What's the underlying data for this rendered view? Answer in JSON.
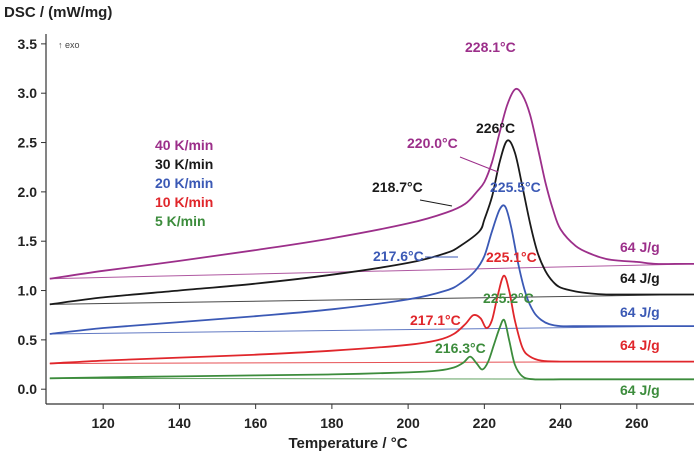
{
  "chart_data": {
    "type": "line",
    "title": "",
    "xlabel": "Temperature / °C",
    "ylabel": "DSC / (mW/mg)",
    "xlim": [
      105,
      275
    ],
    "ylim": [
      -0.15,
      3.6
    ],
    "xticks": [
      120,
      140,
      160,
      180,
      200,
      220,
      240,
      260
    ],
    "yticks": [
      "0.0",
      "0.5",
      "1.0",
      "1.5",
      "2.0",
      "2.5",
      "3.0",
      "3.5"
    ],
    "exo_label": "↑ exo",
    "legend_placement": "upper-left",
    "series": [
      {
        "name": "40 K/min",
        "color": "#9c2f8a",
        "x": [
          106,
          120,
          140,
          160,
          180,
          200,
          210,
          215,
          218,
          220,
          222,
          224,
          226,
          228.1,
          230,
          232,
          234,
          236,
          238,
          240,
          244,
          248,
          252,
          256,
          260,
          265,
          270,
          275
        ],
        "y": [
          1.12,
          1.2,
          1.3,
          1.41,
          1.53,
          1.68,
          1.79,
          1.88,
          2.0,
          2.1,
          2.3,
          2.6,
          2.88,
          3.04,
          2.98,
          2.78,
          2.45,
          2.1,
          1.82,
          1.62,
          1.45,
          1.37,
          1.32,
          1.3,
          1.29,
          1.27,
          1.27,
          1.27
        ],
        "baseline": [
          [
            106,
            1.12
          ],
          [
            275,
            1.27
          ]
        ],
        "peak_label": "228.1°C",
        "onset_label": "220.0°C",
        "enthalpy_label": "64 J/g"
      },
      {
        "name": "30 K/min",
        "color": "#1a1a1a",
        "x": [
          106,
          120,
          140,
          160,
          180,
          200,
          210,
          214,
          218.7,
          220,
          222,
          224,
          226,
          228,
          230,
          232,
          234,
          236,
          238,
          240,
          244,
          248,
          252,
          256,
          260,
          265,
          270,
          275
        ],
        "y": [
          0.86,
          0.93,
          1.0,
          1.07,
          1.16,
          1.28,
          1.38,
          1.46,
          1.6,
          1.72,
          1.95,
          2.3,
          2.52,
          2.4,
          2.05,
          1.68,
          1.38,
          1.2,
          1.09,
          1.03,
          0.99,
          0.97,
          0.96,
          0.96,
          0.96,
          0.96,
          0.96,
          0.96
        ],
        "baseline": [
          [
            106,
            0.86
          ],
          [
            275,
            0.96
          ]
        ],
        "peak_label": "226°C",
        "onset_label": "218.7°C",
        "enthalpy_label": "64 J/g"
      },
      {
        "name": "20 K/min",
        "color": "#3b59b5",
        "x": [
          106,
          120,
          140,
          160,
          180,
          200,
          210,
          214,
          217.6,
          220,
          222,
          224,
          225.5,
          227,
          229,
          231,
          233,
          235,
          237,
          240,
          245,
          250,
          260,
          270,
          275
        ],
        "y": [
          0.56,
          0.62,
          0.68,
          0.74,
          0.81,
          0.91,
          1.0,
          1.08,
          1.2,
          1.35,
          1.6,
          1.82,
          1.85,
          1.65,
          1.25,
          0.95,
          0.78,
          0.7,
          0.66,
          0.64,
          0.64,
          0.64,
          0.64,
          0.64,
          0.64
        ],
        "baseline": [
          [
            106,
            0.56
          ],
          [
            275,
            0.64
          ]
        ],
        "peak_label": "225.5°C",
        "onset_label": "217.6°C",
        "enthalpy_label": "64 J/g"
      },
      {
        "name": "10 K/min",
        "color": "#e0262b",
        "x": [
          106,
          120,
          140,
          160,
          180,
          200,
          208,
          212,
          215,
          217.1,
          219,
          220.5,
          222,
          223.5,
          225.1,
          226.5,
          228,
          230,
          232,
          235,
          240,
          250,
          260,
          270,
          275
        ],
        "y": [
          0.26,
          0.29,
          0.32,
          0.35,
          0.39,
          0.45,
          0.5,
          0.56,
          0.66,
          0.75,
          0.72,
          0.62,
          0.7,
          0.95,
          1.15,
          1.0,
          0.7,
          0.42,
          0.33,
          0.29,
          0.28,
          0.28,
          0.28,
          0.28,
          0.28
        ],
        "baseline": [
          [
            106,
            0.26
          ],
          [
            275,
            0.28
          ]
        ],
        "peak_label": "225.1°C",
        "onset_label": "217.1°C",
        "enthalpy_label": "64 J/g"
      },
      {
        "name": "5 K/min",
        "color": "#3c8c3c",
        "x": [
          106,
          120,
          140,
          160,
          180,
          200,
          208,
          212,
          214.5,
          216.3,
          218,
          219.5,
          221,
          222.5,
          224,
          225.2,
          226.5,
          228,
          230,
          233,
          240,
          250,
          260,
          270,
          275
        ],
        "y": [
          0.11,
          0.12,
          0.13,
          0.14,
          0.15,
          0.17,
          0.19,
          0.22,
          0.27,
          0.33,
          0.26,
          0.2,
          0.28,
          0.45,
          0.62,
          0.7,
          0.5,
          0.25,
          0.13,
          0.1,
          0.1,
          0.1,
          0.1,
          0.1,
          0.1
        ],
        "baseline": [
          [
            106,
            0.11
          ],
          [
            275,
            0.1
          ]
        ],
        "peak_label": "225.2°C",
        "onset_label": "216.3°C",
        "enthalpy_label": "64 J/g"
      }
    ]
  }
}
